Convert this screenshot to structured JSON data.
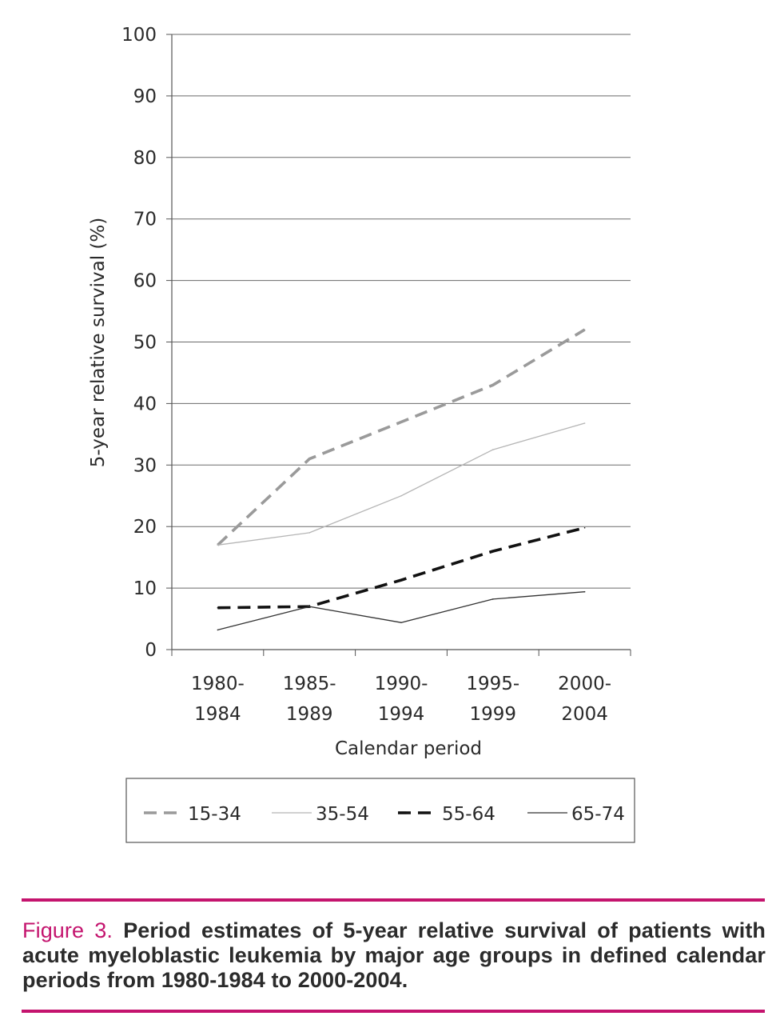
{
  "chart_data": {
    "type": "line",
    "categories": [
      "1980-1984",
      "1985-1989",
      "1990-1994",
      "1995-1999",
      "2000-2004"
    ],
    "category_lines": [
      [
        "1980-",
        "1984"
      ],
      [
        "1985-",
        "1989"
      ],
      [
        "1990-",
        "1994"
      ],
      [
        "1995-",
        "1999"
      ],
      [
        "2000-",
        "2004"
      ]
    ],
    "series": [
      {
        "name": "15-34",
        "values": [
          17,
          31,
          37,
          43,
          52
        ],
        "color": "#9a9a9a",
        "style": "dashed-thick"
      },
      {
        "name": "35-54",
        "values": [
          17,
          19,
          25,
          32.5,
          36.8
        ],
        "color": "#b5b5b5",
        "style": "solid-thin"
      },
      {
        "name": "55-64",
        "values": [
          6.8,
          7,
          11.3,
          16,
          19.8
        ],
        "color": "#111111",
        "style": "dashed-thick"
      },
      {
        "name": "65-74",
        "values": [
          3.2,
          7,
          4.4,
          8.2,
          9.4
        ],
        "color": "#333333",
        "style": "solid-thin"
      }
    ],
    "title": "",
    "xlabel": "Calendar period",
    "ylabel": "5-year relative survival (%)",
    "ylim": [
      0,
      100
    ],
    "yticks": [
      0,
      10,
      20,
      30,
      40,
      50,
      60,
      70,
      80,
      90,
      100
    ],
    "grid": true,
    "legend_position": "bottom"
  },
  "caption": {
    "label": "Figure 3.",
    "text": "Period estimates of 5-year relative survival of patients with acute myeloblastic leukemia by major age groups in defined calendar periods from 1980-1984 to 2000-2004.",
    "label_color": "#c4146e",
    "rule_color": "#c4146e"
  }
}
